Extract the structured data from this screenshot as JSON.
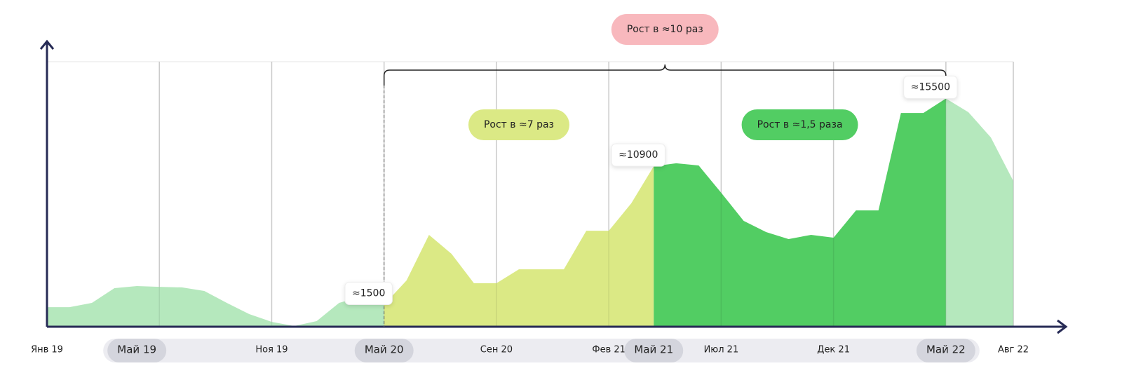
{
  "chart_data": {
    "type": "area",
    "categories": [
      "Янв 19",
      null,
      null,
      null,
      "Май 19",
      null,
      null,
      null,
      null,
      null,
      "Ноя 19",
      null,
      null,
      null,
      null,
      "Май 20",
      null,
      null,
      null,
      null,
      "Сен 20",
      null,
      null,
      null,
      null,
      "Фев 21",
      null,
      "Май 21",
      null,
      null,
      "Июл 21",
      null,
      null,
      null,
      null,
      "Дек 21",
      null,
      null,
      null,
      null,
      "Май 22",
      null,
      null,
      "Авг 22"
    ],
    "highlighted_categories": [
      "Май 19",
      "Май 20",
      "Май 21",
      "Май 22"
    ],
    "values": [
      1330,
      1330,
      1620,
      2620,
      2760,
      2710,
      2670,
      2430,
      1620,
      860,
      330,
      50,
      380,
      1620,
      2050,
      1500,
      3140,
      6240,
      4950,
      2950,
      2950,
      3900,
      3900,
      3900,
      6520,
      6520,
      8380,
      10900,
      11100,
      10950,
      9100,
      7190,
      6430,
      5950,
      6240,
      6050,
      7900,
      7900,
      14520,
      14520,
      15500,
      14570,
      12860,
      9900
    ],
    "segments": [
      {
        "start": 0,
        "end": 15,
        "color": "#b5e8bd"
      },
      {
        "start": 15,
        "end": 27,
        "color": "#dbe985"
      },
      {
        "start": 27,
        "end": 40,
        "color": "#52cd63"
      },
      {
        "start": 40,
        "end": 43,
        "color": "#b5e8bd"
      }
    ],
    "point_labels": [
      {
        "index": 15,
        "label": "≈1500"
      },
      {
        "index": 27,
        "label": "≈10900"
      },
      {
        "index": 40,
        "label": "≈15500"
      }
    ],
    "growth_labels": [
      {
        "from": 15,
        "to": 27,
        "text": "Рост в ≈7 раз",
        "color": "#dbe985",
        "brace": false
      },
      {
        "from": 27,
        "to": 40,
        "text": "Рост в ≈1,5 раза",
        "color": "#52cd63",
        "brace": false
      },
      {
        "from": 15,
        "to": 40,
        "text": "Рост в ≈10 раз",
        "color": "#f8b8bd",
        "brace": true
      }
    ],
    "vgrid": [
      0,
      5,
      10,
      15,
      20,
      25,
      30,
      35,
      40,
      43
    ],
    "ylim": [
      0,
      18000
    ]
  }
}
